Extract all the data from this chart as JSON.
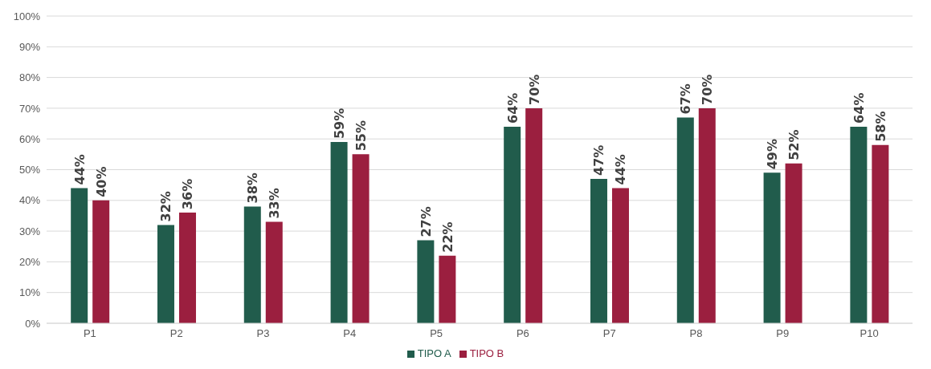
{
  "chart_data": {
    "type": "bar",
    "categories": [
      "P1",
      "P2",
      "P3",
      "P4",
      "P5",
      "P6",
      "P7",
      "P8",
      "P9",
      "P10"
    ],
    "series": [
      {
        "name": "TIPO A",
        "color": "#215c4c",
        "values": [
          44,
          32,
          38,
          59,
          27,
          64,
          47,
          67,
          49,
          64
        ],
        "value_labels": [
          "44%",
          "32%",
          "38%",
          "59%",
          "27%",
          "64%",
          "47%",
          "67%",
          "49%",
          "64%"
        ]
      },
      {
        "name": "TIPO B",
        "color": "#9b1f3f",
        "values": [
          40,
          36,
          33,
          55,
          22,
          70,
          44,
          70,
          52,
          58
        ],
        "value_labels": [
          "40%",
          "36%",
          "33%",
          "55%",
          "22%",
          "70%",
          "44%",
          "70%",
          "52%",
          "58%"
        ]
      }
    ],
    "ylim": [
      0,
      100
    ],
    "yticks": [
      {
        "value": 0,
        "label": "0%"
      },
      {
        "value": 10,
        "label": "10%"
      },
      {
        "value": 20,
        "label": "20%"
      },
      {
        "value": 30,
        "label": "30%"
      },
      {
        "value": 40,
        "label": "40%"
      },
      {
        "value": 50,
        "label": "50%"
      },
      {
        "value": 60,
        "label": "60%"
      },
      {
        "value": 70,
        "label": "70%"
      },
      {
        "value": 80,
        "label": "80%"
      },
      {
        "value": 90,
        "label": "90%"
      },
      {
        "value": 100,
        "label": "100%"
      }
    ],
    "grid": "y",
    "legend": "bottom"
  }
}
